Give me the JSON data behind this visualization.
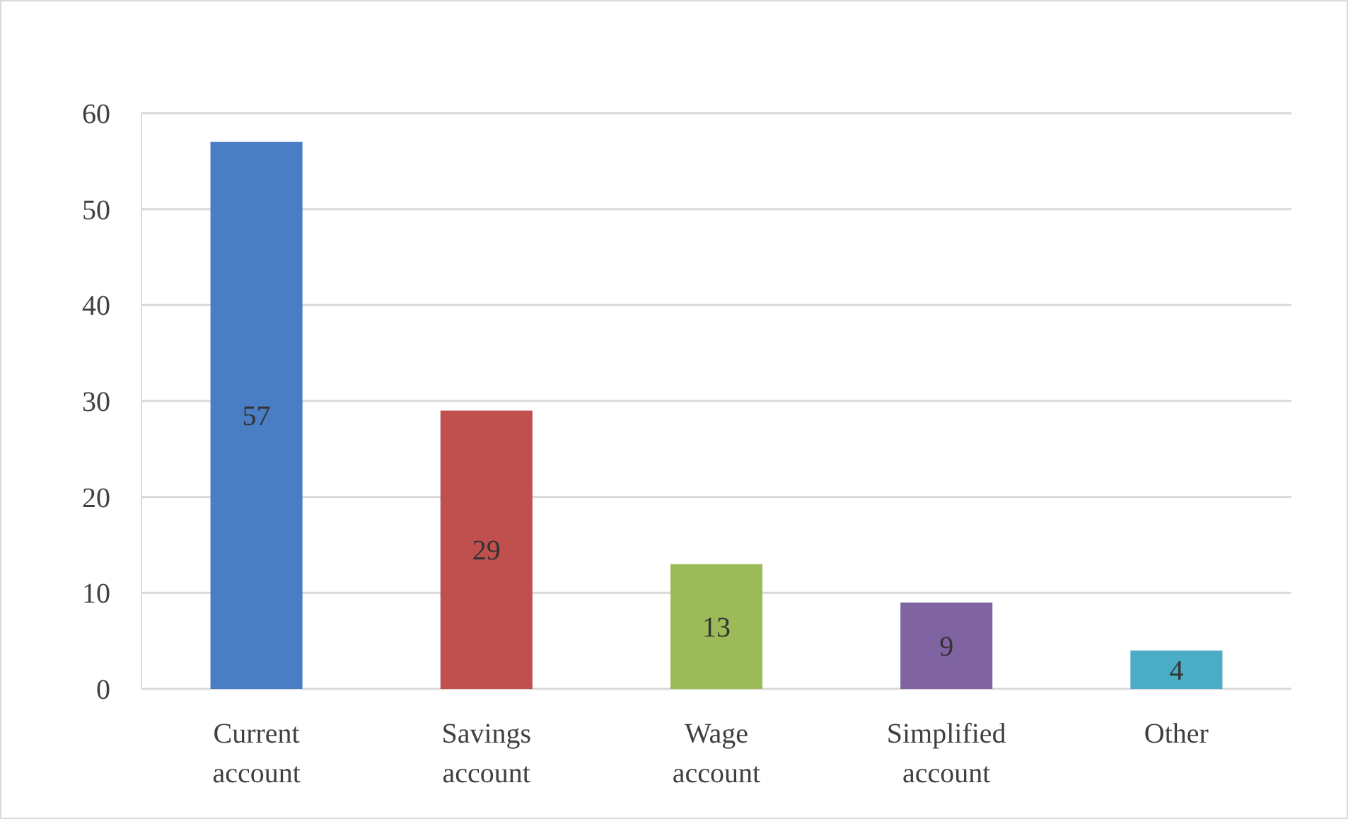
{
  "chart_data": {
    "type": "bar",
    "categories": [
      "Current account",
      "Savings account",
      "Wage account",
      "Simplified account",
      "Other"
    ],
    "values": [
      57,
      29,
      13,
      9,
      4
    ],
    "colors": [
      "#4a7ec4",
      "#c0504d",
      "#9bbb59",
      "#8064a2",
      "#4bacc6"
    ],
    "ylim": [
      0,
      60
    ],
    "yticks": [
      0,
      10,
      20,
      30,
      40,
      50,
      60
    ],
    "grid": "y",
    "data_labels": true
  }
}
